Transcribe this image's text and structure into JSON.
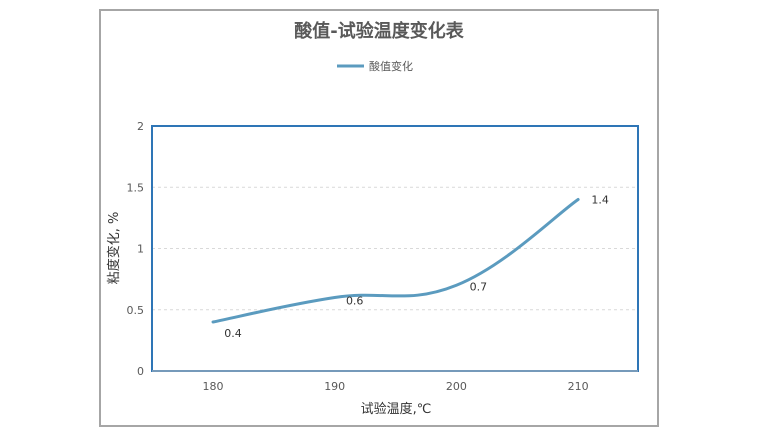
{
  "chart_data": {
    "type": "line",
    "title": "酸值-试验温度变化表",
    "xlabel": "试验温度,℃",
    "ylabel": "粘度变化, %",
    "categories": [
      "180",
      "190",
      "200",
      "210"
    ],
    "x": [
      180,
      190,
      200,
      210
    ],
    "series": [
      {
        "name": "酸值变化",
        "values": [
          0.4,
          0.6,
          0.7,
          1.4
        ]
      }
    ],
    "data_labels": [
      "0.4",
      "0.6",
      "0.7",
      "1.4"
    ],
    "ylim": [
      0,
      2
    ],
    "yticks": [
      "0",
      "0.5",
      "1",
      "1.5",
      "2"
    ],
    "grid": true,
    "smooth": true,
    "legend_position": "top",
    "colors": {
      "series": "#5b9bbf",
      "plot_border": "#2e75b6",
      "grid": "#d9d9d9",
      "frame": "#a6a6a6"
    }
  }
}
